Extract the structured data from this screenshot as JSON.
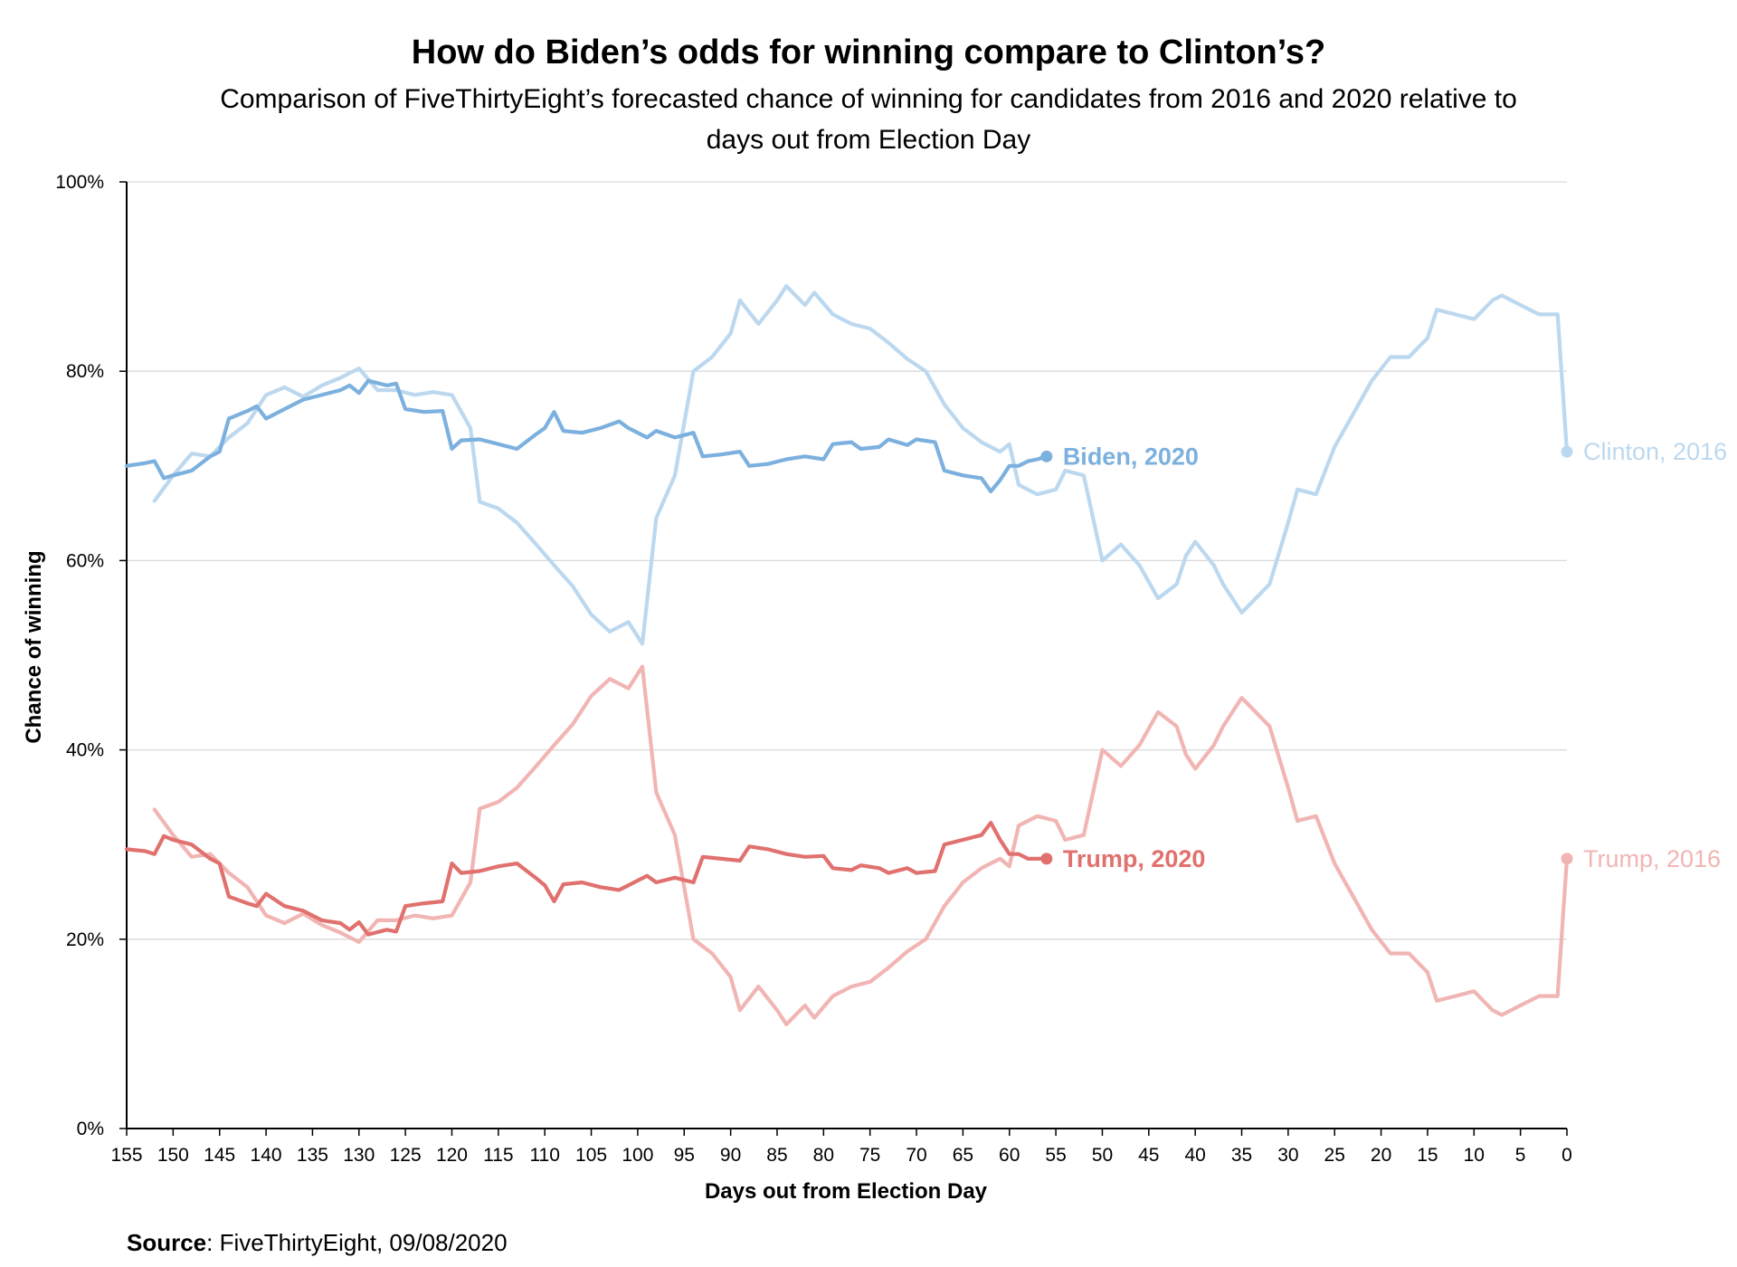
{
  "chart_data": {
    "type": "line",
    "title": "How do Biden’s odds for winning compare to Clinton’s?",
    "subtitle_lines": [
      "Comparison of FiveThirtyEight’s forecasted chance of winning for candidates from 2016 and 2020 relative to",
      "days out from Election Day"
    ],
    "xlabel": "Days out from Election Day",
    "ylabel": "Chance of winning",
    "xlim": [
      155,
      0
    ],
    "ylim": [
      0,
      100
    ],
    "x_ticks": [
      155,
      150,
      145,
      140,
      135,
      130,
      125,
      120,
      115,
      110,
      105,
      100,
      95,
      90,
      85,
      80,
      75,
      70,
      65,
      60,
      55,
      50,
      45,
      40,
      35,
      30,
      25,
      20,
      15,
      10,
      5,
      0
    ],
    "y_ticks": [
      0,
      20,
      40,
      60,
      80,
      100
    ],
    "y_tick_labels": [
      "0%",
      "20%",
      "40%",
      "60%",
      "80%",
      "100%"
    ],
    "grid": "horizontal",
    "colors": {
      "biden_2020": "#7cb0de",
      "clinton_2016": "#bcd8ef",
      "trump_2020": "#e0716e",
      "trump_2016": "#f1b5b3"
    },
    "series": [
      {
        "name": "Clinton, 2016",
        "color_key": "clinton_2016",
        "points": [
          [
            152,
            66.3
          ],
          [
            150,
            69.0
          ],
          [
            148,
            71.3
          ],
          [
            146,
            71.0
          ],
          [
            144,
            73.0
          ],
          [
            142,
            74.5
          ],
          [
            140,
            77.5
          ],
          [
            138,
            78.3
          ],
          [
            136,
            77.3
          ],
          [
            134,
            78.5
          ],
          [
            132,
            79.3
          ],
          [
            130,
            80.3
          ],
          [
            128,
            78.0
          ],
          [
            126,
            78.0
          ],
          [
            124,
            77.5
          ],
          [
            122,
            77.8
          ],
          [
            120,
            77.5
          ],
          [
            118,
            74.0
          ],
          [
            117,
            66.2
          ],
          [
            115,
            65.5
          ],
          [
            113,
            64.0
          ],
          [
            111,
            61.8
          ],
          [
            109,
            59.5
          ],
          [
            107,
            57.3
          ],
          [
            105,
            54.3
          ],
          [
            103,
            52.5
          ],
          [
            101,
            53.5
          ],
          [
            99.5,
            51.2
          ],
          [
            98,
            64.5
          ],
          [
            96,
            69.0
          ],
          [
            94,
            80.0
          ],
          [
            92,
            81.5
          ],
          [
            90,
            84.0
          ],
          [
            89,
            87.5
          ],
          [
            87,
            85.0
          ],
          [
            85,
            87.5
          ],
          [
            84,
            89.0
          ],
          [
            82,
            87.0
          ],
          [
            81,
            88.3
          ],
          [
            79,
            86.0
          ],
          [
            77,
            85.0
          ],
          [
            75,
            84.5
          ],
          [
            73,
            83.0
          ],
          [
            71,
            81.3
          ],
          [
            69,
            80.0
          ],
          [
            67,
            76.5
          ],
          [
            65,
            74.0
          ],
          [
            63,
            72.5
          ],
          [
            61,
            71.5
          ],
          [
            60,
            72.3
          ],
          [
            59,
            68.0
          ],
          [
            57,
            67.0
          ],
          [
            55,
            67.5
          ],
          [
            54,
            69.5
          ],
          [
            52,
            69.0
          ],
          [
            50,
            60.0
          ],
          [
            48,
            61.7
          ],
          [
            46,
            59.5
          ],
          [
            44,
            56.0
          ],
          [
            42,
            57.5
          ],
          [
            41,
            60.5
          ],
          [
            40,
            62.0
          ],
          [
            38,
            59.5
          ],
          [
            37,
            57.5
          ],
          [
            35,
            54.5
          ],
          [
            34,
            55.5
          ],
          [
            32,
            57.5
          ],
          [
            30,
            64.0
          ],
          [
            29,
            67.5
          ],
          [
            27,
            67.0
          ],
          [
            25,
            72.0
          ],
          [
            23,
            75.5
          ],
          [
            21,
            79.0
          ],
          [
            19,
            81.5
          ],
          [
            17,
            81.5
          ],
          [
            15,
            83.5
          ],
          [
            14,
            86.5
          ],
          [
            12,
            86.0
          ],
          [
            10,
            85.5
          ],
          [
            8,
            87.5
          ],
          [
            7,
            88.0
          ],
          [
            5,
            87.0
          ],
          [
            3,
            86.0
          ],
          [
            1,
            86.0
          ],
          [
            0,
            71.5
          ]
        ]
      },
      {
        "name": "Trump, 2016",
        "color_key": "trump_2016",
        "points": [
          [
            152,
            33.7
          ],
          [
            150,
            31.0
          ],
          [
            148,
            28.7
          ],
          [
            146,
            29.0
          ],
          [
            144,
            27.0
          ],
          [
            142,
            25.5
          ],
          [
            140,
            22.5
          ],
          [
            138,
            21.7
          ],
          [
            136,
            22.7
          ],
          [
            134,
            21.5
          ],
          [
            132,
            20.7
          ],
          [
            130,
            19.7
          ],
          [
            128,
            22.0
          ],
          [
            126,
            22.0
          ],
          [
            124,
            22.5
          ],
          [
            122,
            22.2
          ],
          [
            120,
            22.5
          ],
          [
            118,
            26.0
          ],
          [
            117,
            33.8
          ],
          [
            115,
            34.5
          ],
          [
            113,
            36.0
          ],
          [
            111,
            38.2
          ],
          [
            109,
            40.5
          ],
          [
            107,
            42.7
          ],
          [
            105,
            45.7
          ],
          [
            103,
            47.5
          ],
          [
            101,
            46.5
          ],
          [
            99.5,
            48.8
          ],
          [
            98,
            35.5
          ],
          [
            96,
            31.0
          ],
          [
            94,
            20.0
          ],
          [
            92,
            18.5
          ],
          [
            90,
            16.0
          ],
          [
            89,
            12.5
          ],
          [
            87,
            15.0
          ],
          [
            85,
            12.5
          ],
          [
            84,
            11.0
          ],
          [
            82,
            13.0
          ],
          [
            81,
            11.7
          ],
          [
            79,
            14.0
          ],
          [
            77,
            15.0
          ],
          [
            75,
            15.5
          ],
          [
            73,
            17.0
          ],
          [
            71,
            18.7
          ],
          [
            69,
            20.0
          ],
          [
            67,
            23.5
          ],
          [
            65,
            26.0
          ],
          [
            63,
            27.5
          ],
          [
            61,
            28.5
          ],
          [
            60,
            27.7
          ],
          [
            59,
            32.0
          ],
          [
            57,
            33.0
          ],
          [
            55,
            32.5
          ],
          [
            54,
            30.5
          ],
          [
            52,
            31.0
          ],
          [
            50,
            40.0
          ],
          [
            48,
            38.3
          ],
          [
            46,
            40.5
          ],
          [
            44,
            44.0
          ],
          [
            42,
            42.5
          ],
          [
            41,
            39.5
          ],
          [
            40,
            38.0
          ],
          [
            38,
            40.5
          ],
          [
            37,
            42.5
          ],
          [
            35,
            45.5
          ],
          [
            34,
            44.5
          ],
          [
            32,
            42.5
          ],
          [
            30,
            36.0
          ],
          [
            29,
            32.5
          ],
          [
            27,
            33.0
          ],
          [
            25,
            28.0
          ],
          [
            23,
            24.5
          ],
          [
            21,
            21.0
          ],
          [
            19,
            18.5
          ],
          [
            17,
            18.5
          ],
          [
            15,
            16.5
          ],
          [
            14,
            13.5
          ],
          [
            12,
            14.0
          ],
          [
            10,
            14.5
          ],
          [
            8,
            12.5
          ],
          [
            7,
            12.0
          ],
          [
            5,
            13.0
          ],
          [
            3,
            14.0
          ],
          [
            1,
            14.0
          ],
          [
            0,
            28.5
          ]
        ]
      },
      {
        "name": "Biden, 2020",
        "color_key": "biden_2020",
        "points": [
          [
            155,
            70.0
          ],
          [
            153,
            70.3
          ],
          [
            152,
            70.5
          ],
          [
            151,
            68.7
          ],
          [
            150,
            69.0
          ],
          [
            148,
            69.5
          ],
          [
            146,
            71.0
          ],
          [
            145,
            71.5
          ],
          [
            144,
            75.0
          ],
          [
            142,
            75.8
          ],
          [
            141,
            76.3
          ],
          [
            140,
            75.0
          ],
          [
            138,
            76.0
          ],
          [
            136,
            77.0
          ],
          [
            134,
            77.5
          ],
          [
            132,
            78.0
          ],
          [
            131,
            78.5
          ],
          [
            130,
            77.7
          ],
          [
            129,
            79.0
          ],
          [
            127,
            78.5
          ],
          [
            126,
            78.7
          ],
          [
            125,
            76.0
          ],
          [
            123,
            75.7
          ],
          [
            121,
            75.8
          ],
          [
            120,
            71.8
          ],
          [
            119,
            72.7
          ],
          [
            117,
            72.8
          ],
          [
            115,
            72.3
          ],
          [
            113,
            71.8
          ],
          [
            111,
            73.3
          ],
          [
            110,
            74.0
          ],
          [
            109,
            75.7
          ],
          [
            108,
            73.7
          ],
          [
            106,
            73.5
          ],
          [
            104,
            74.0
          ],
          [
            102,
            74.7
          ],
          [
            101,
            74.0
          ],
          [
            99,
            73.0
          ],
          [
            98,
            73.7
          ],
          [
            96,
            73.0
          ],
          [
            94,
            73.5
          ],
          [
            93,
            71.0
          ],
          [
            91,
            71.2
          ],
          [
            89,
            71.5
          ],
          [
            88,
            70.0
          ],
          [
            86,
            70.2
          ],
          [
            84,
            70.7
          ],
          [
            82,
            71.0
          ],
          [
            80,
            70.7
          ],
          [
            79,
            72.3
          ],
          [
            77,
            72.5
          ],
          [
            76,
            71.8
          ],
          [
            74,
            72.0
          ],
          [
            73,
            72.8
          ],
          [
            71,
            72.2
          ],
          [
            70,
            72.8
          ],
          [
            68,
            72.5
          ],
          [
            67,
            69.5
          ],
          [
            65,
            69.0
          ],
          [
            63,
            68.7
          ],
          [
            62,
            67.3
          ],
          [
            61,
            68.5
          ],
          [
            60,
            70.0
          ],
          [
            59,
            70.0
          ],
          [
            58,
            70.5
          ],
          [
            57,
            70.7
          ],
          [
            56,
            71.0
          ]
        ]
      },
      {
        "name": "Trump, 2020",
        "color_key": "trump_2020",
        "points": [
          [
            155,
            29.5
          ],
          [
            153,
            29.3
          ],
          [
            152,
            29.0
          ],
          [
            151,
            30.9
          ],
          [
            150,
            30.5
          ],
          [
            148,
            30.0
          ],
          [
            146,
            28.5
          ],
          [
            145,
            28.0
          ],
          [
            144,
            24.5
          ],
          [
            142,
            23.8
          ],
          [
            141,
            23.5
          ],
          [
            140,
            24.8
          ],
          [
            138,
            23.5
          ],
          [
            136,
            23.0
          ],
          [
            134,
            22.0
          ],
          [
            132,
            21.7
          ],
          [
            131,
            21.0
          ],
          [
            130,
            21.8
          ],
          [
            129,
            20.5
          ],
          [
            127,
            21.0
          ],
          [
            126,
            20.8
          ],
          [
            125,
            23.5
          ],
          [
            123,
            23.8
          ],
          [
            121,
            24.0
          ],
          [
            120,
            28.0
          ],
          [
            119,
            27.0
          ],
          [
            117,
            27.2
          ],
          [
            115,
            27.7
          ],
          [
            113,
            28.0
          ],
          [
            111,
            26.5
          ],
          [
            110,
            25.7
          ],
          [
            109,
            24.0
          ],
          [
            108,
            25.8
          ],
          [
            106,
            26.0
          ],
          [
            104,
            25.5
          ],
          [
            102,
            25.2
          ],
          [
            101,
            25.7
          ],
          [
            99,
            26.7
          ],
          [
            98,
            26.0
          ],
          [
            96,
            26.5
          ],
          [
            94,
            26.0
          ],
          [
            93,
            28.7
          ],
          [
            91,
            28.5
          ],
          [
            89,
            28.3
          ],
          [
            88,
            29.8
          ],
          [
            86,
            29.5
          ],
          [
            84,
            29.0
          ],
          [
            82,
            28.7
          ],
          [
            80,
            28.8
          ],
          [
            79,
            27.5
          ],
          [
            77,
            27.3
          ],
          [
            76,
            27.8
          ],
          [
            74,
            27.5
          ],
          [
            73,
            27.0
          ],
          [
            71,
            27.5
          ],
          [
            70,
            27.0
          ],
          [
            68,
            27.2
          ],
          [
            67,
            30.0
          ],
          [
            65,
            30.5
          ],
          [
            63,
            31.0
          ],
          [
            62,
            32.3
          ],
          [
            61,
            30.5
          ],
          [
            60,
            29.0
          ],
          [
            59,
            29.0
          ],
          [
            58,
            28.5
          ],
          [
            57,
            28.5
          ],
          [
            56,
            28.5
          ]
        ]
      }
    ],
    "end_labels": [
      {
        "text": "Clinton, 2016",
        "series": "Clinton, 2016",
        "bold": false
      },
      {
        "text": "Trump, 2016",
        "series": "Trump, 2016",
        "bold": false
      },
      {
        "text": "Biden, 2020",
        "series": "Biden, 2020",
        "bold": true
      },
      {
        "text": "Trump, 2020",
        "series": "Trump, 2020",
        "bold": true
      }
    ]
  },
  "source": {
    "label": "Source",
    "text": ": FiveThirtyEight, 09/08/2020"
  }
}
